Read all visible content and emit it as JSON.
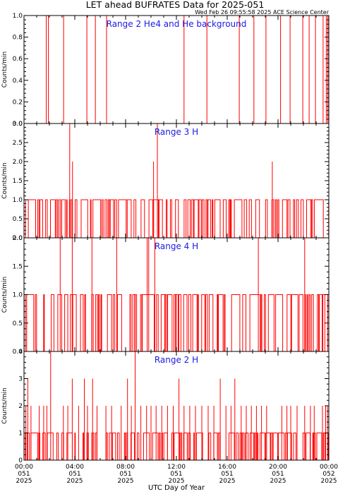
{
  "title": "LET ahead BUFRATES Data for 2025-051",
  "timestamp": "Wed Feb 26 09:55:58 2025 ACE Science Center",
  "xlabel": "UTC Day of Year",
  "x_ticks": [
    {
      "time": "00:00",
      "doy": "051",
      "year": "2025"
    },
    {
      "time": "04:00",
      "doy": "051",
      "year": "2025"
    },
    {
      "time": "08:00",
      "doy": "051",
      "year": "2025"
    },
    {
      "time": "12:00",
      "doy": "051",
      "year": "2025"
    },
    {
      "time": "16:00",
      "doy": "051",
      "year": "2025"
    },
    {
      "time": "20:00",
      "doy": "051",
      "year": "2025"
    },
    {
      "time": "00:00",
      "doy": "052",
      "year": "2025"
    }
  ],
  "colors": {
    "series": "#ff0000",
    "panel_title": "#1a1ae6",
    "axes": "#000000"
  },
  "chart_data": [
    {
      "type": "line",
      "title": "Range 2 He4 and He background",
      "ylabel": "Counts/min",
      "xlim": [
        0,
        24
      ],
      "ylim": [
        0,
        1.0
      ],
      "yticks": [
        0.0,
        0.2,
        0.4,
        0.6,
        0.8,
        1.0
      ],
      "ytick_labels": [
        "0.0",
        "0.2",
        "0.4",
        "0.6",
        "0.8",
        "1.0"
      ],
      "baseline": 0,
      "spikes": [
        [
          1.75,
          1
        ],
        [
          1.92,
          1
        ],
        [
          3.12,
          1
        ],
        [
          4.95,
          1
        ],
        [
          5.62,
          1
        ],
        [
          6.5,
          1
        ],
        [
          12.6,
          1
        ],
        [
          14.4,
          1
        ],
        [
          16.95,
          1
        ],
        [
          18.1,
          1
        ],
        [
          19.05,
          1
        ],
        [
          20.2,
          1
        ],
        [
          20.95,
          1
        ],
        [
          21.95,
          1
        ],
        [
          22.45,
          1
        ],
        [
          22.95,
          1
        ],
        [
          23.55,
          1
        ],
        [
          23.8,
          1
        ],
        [
          23.92,
          1
        ]
      ]
    },
    {
      "type": "line",
      "title": "Range 3 H",
      "ylabel": "Counts/min",
      "xlim": [
        0,
        24
      ],
      "ylim": [
        0,
        3.0
      ],
      "yticks": [
        0.0,
        0.5,
        1.0,
        1.5,
        2.0,
        2.5,
        3.0
      ],
      "ytick_labels": [
        "0.0",
        "0.5",
        "1.0",
        "1.5",
        "2.0",
        "2.5",
        "3.0"
      ],
      "baseline": 1,
      "spikes": [
        [
          3.6,
          3
        ],
        [
          3.82,
          2
        ],
        [
          10.2,
          2
        ],
        [
          10.5,
          3
        ],
        [
          19.55,
          2
        ]
      ]
    },
    {
      "type": "line",
      "title": "Range 4 H",
      "ylabel": "Counts/min",
      "xlim": [
        0,
        24
      ],
      "ylim": [
        0,
        2.0
      ],
      "yticks": [
        0.0,
        0.5,
        1.0,
        1.5,
        2.0
      ],
      "ytick_labels": [
        "0.0",
        "0.5",
        "1.0",
        "1.5",
        "2.0"
      ],
      "baseline": 1,
      "spikes": [
        [
          2.85,
          2
        ],
        [
          3.8,
          2
        ],
        [
          5.35,
          2
        ],
        [
          7.3,
          2
        ],
        [
          9.7,
          2
        ],
        [
          9.82,
          2
        ],
        [
          10.3,
          2
        ],
        [
          18.45,
          2
        ],
        [
          22.1,
          2
        ]
      ]
    },
    {
      "type": "line",
      "title": "Range 2 H",
      "ylabel": "Counts/min",
      "xlim": [
        0,
        24
      ],
      "ylim": [
        0,
        4
      ],
      "yticks": [
        0,
        1,
        2,
        3,
        4
      ],
      "ytick_labels": [
        "0",
        "1",
        "2",
        "3",
        "4"
      ],
      "baseline": 1,
      "spikes": [
        [
          0.15,
          2
        ],
        [
          0.3,
          3
        ],
        [
          0.55,
          2
        ],
        [
          1.2,
          2
        ],
        [
          1.55,
          2
        ],
        [
          1.8,
          2
        ],
        [
          2.1,
          4
        ],
        [
          3.1,
          2
        ],
        [
          3.45,
          2
        ],
        [
          3.8,
          3
        ],
        [
          4.3,
          2
        ],
        [
          4.75,
          3
        ],
        [
          5.0,
          2
        ],
        [
          5.4,
          3
        ],
        [
          5.75,
          2
        ],
        [
          6.45,
          2
        ],
        [
          6.9,
          2
        ],
        [
          7.65,
          2
        ],
        [
          8.15,
          3
        ],
        [
          8.45,
          2
        ],
        [
          8.75,
          4
        ],
        [
          9.2,
          2
        ],
        [
          9.65,
          2
        ],
        [
          10.0,
          2
        ],
        [
          10.4,
          2
        ],
        [
          10.85,
          2
        ],
        [
          11.3,
          2
        ],
        [
          11.75,
          2
        ],
        [
          12.2,
          3
        ],
        [
          12.6,
          2
        ],
        [
          13.05,
          2
        ],
        [
          13.5,
          2
        ],
        [
          14.0,
          2
        ],
        [
          14.5,
          2
        ],
        [
          14.95,
          2
        ],
        [
          15.45,
          3
        ],
        [
          15.9,
          2
        ],
        [
          16.3,
          2
        ],
        [
          16.6,
          3
        ],
        [
          17.1,
          2
        ],
        [
          17.5,
          2
        ],
        [
          17.9,
          2
        ],
        [
          18.3,
          2
        ],
        [
          18.7,
          2
        ],
        [
          19.1,
          2
        ],
        [
          20.3,
          2
        ],
        [
          20.7,
          2
        ],
        [
          21.0,
          2
        ],
        [
          21.5,
          2
        ],
        [
          22.1,
          2
        ],
        [
          22.55,
          2
        ],
        [
          22.85,
          2
        ],
        [
          23.5,
          2
        ],
        [
          23.75,
          2
        ],
        [
          23.9,
          2
        ]
      ]
    }
  ]
}
